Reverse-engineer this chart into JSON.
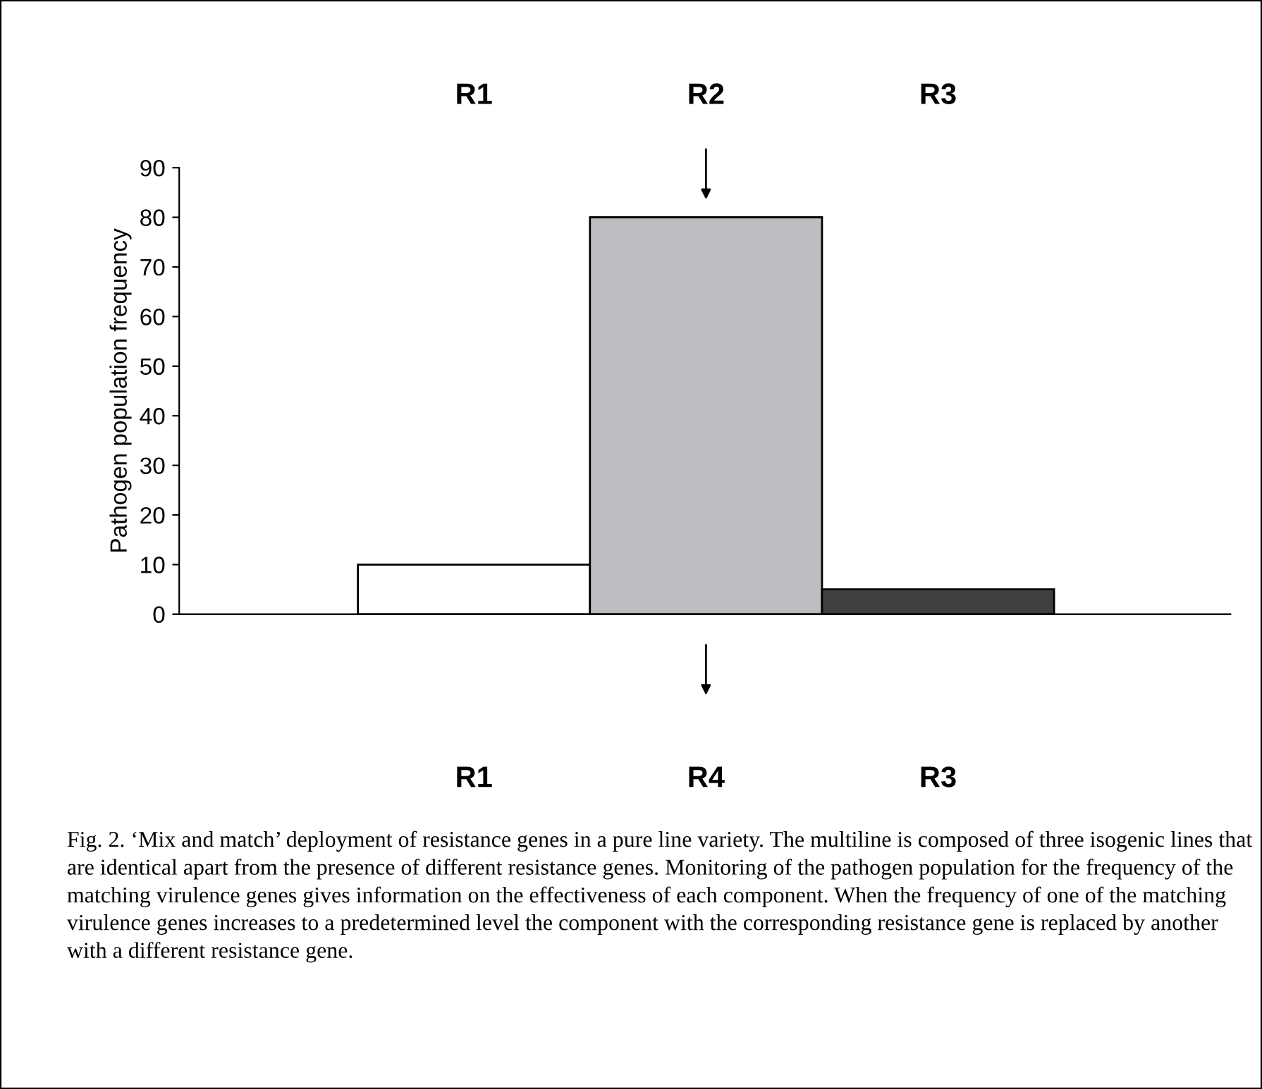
{
  "chart_data": {
    "type": "bar",
    "categories": [
      "R1",
      "R2",
      "R3"
    ],
    "values": [
      10,
      80,
      5
    ],
    "colors": [
      "#ffffff",
      "#bdbec2",
      "#404040"
    ],
    "ylabel": "Pathogen population frequency",
    "ylim": [
      0,
      90
    ],
    "yticks": [
      0,
      10,
      20,
      30,
      40,
      50,
      60,
      70,
      80,
      90
    ],
    "grid": false,
    "legend": false,
    "tick_labels": "y",
    "annotations": [
      "R1",
      "R4",
      "R3",
      "Fig. 2. ‘Mix and match’ deployment of resistance genes in a pure line variety. The multiline is composed of three isogenic lines that are identical apart from the presence of different resistance genes. Monitoring of the pathogen population for the frequency of the matching virulence genes gives information on the effectiveness of each component. When the frequency of one of the matching virulence genes increases to a predetermined level the component with the corresponding resistance gene is replaced by another with a different resistance gene."
    ]
  }
}
